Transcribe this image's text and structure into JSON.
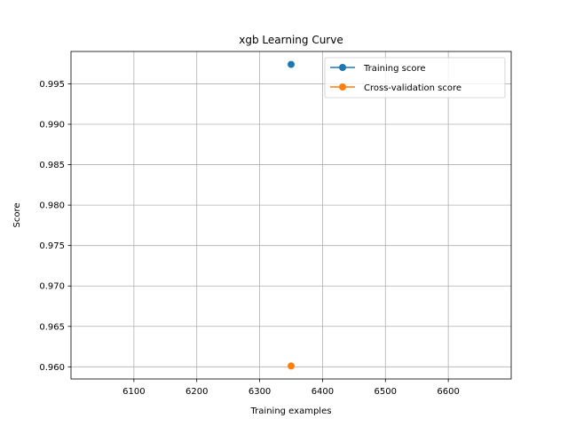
{
  "chart_data": {
    "type": "scatter",
    "title": "xgb Learning Curve",
    "xlabel": "Training examples",
    "ylabel": "Score",
    "xlim": [
      6000,
      6700
    ],
    "ylim": [
      0.9585,
      0.999
    ],
    "xticks": [
      6100,
      6200,
      6300,
      6400,
      6500,
      6600
    ],
    "yticks": [
      0.96,
      0.965,
      0.97,
      0.975,
      0.98,
      0.985,
      0.99,
      0.995
    ],
    "ytick_labels": [
      "0.960",
      "0.965",
      "0.970",
      "0.975",
      "0.980",
      "0.985",
      "0.990",
      "0.995"
    ],
    "grid": true,
    "legend_position": "upper right",
    "series": [
      {
        "name": "Training score",
        "color": "#1f77b4",
        "x": [
          6350
        ],
        "y": [
          0.9974
        ]
      },
      {
        "name": "Cross-validation score",
        "color": "#ff7f0e",
        "x": [
          6350
        ],
        "y": [
          0.9601
        ]
      }
    ]
  }
}
